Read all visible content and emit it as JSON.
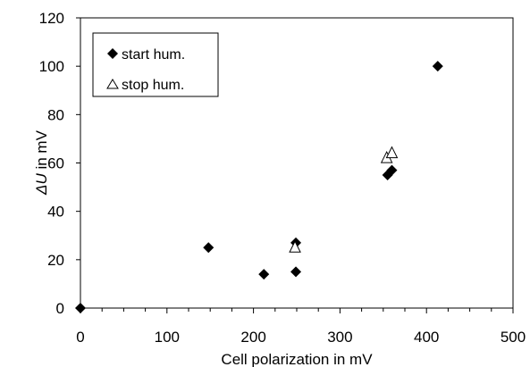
{
  "chart_data": {
    "type": "scatter",
    "xlabel": "Cell polarization in mV",
    "ylabel_italic": "ΔU",
    "ylabel_rest": " in mV",
    "xlim": [
      0,
      500
    ],
    "ylim": [
      0,
      120
    ],
    "x_ticks": [
      0,
      100,
      200,
      300,
      400,
      500
    ],
    "y_ticks": [
      0,
      20,
      40,
      60,
      80,
      100,
      120
    ],
    "x_tick_labels": [
      "0",
      "100",
      "200",
      "300",
      "400",
      "500"
    ],
    "y_tick_labels": [
      "0",
      "20",
      "40",
      "60",
      "80",
      "100",
      "120"
    ],
    "x_minor_step": 25,
    "grid": false,
    "legend_position": "top-left",
    "series": [
      {
        "name": "start hum.",
        "marker": "filled-diamond",
        "color": "#000000",
        "points": [
          {
            "x": 0,
            "y": 0
          },
          {
            "x": 148,
            "y": 25
          },
          {
            "x": 212,
            "y": 14
          },
          {
            "x": 249,
            "y": 27
          },
          {
            "x": 249,
            "y": 15
          },
          {
            "x": 355,
            "y": 55
          },
          {
            "x": 360,
            "y": 57
          },
          {
            "x": 413,
            "y": 100
          }
        ]
      },
      {
        "name": "stop hum.",
        "marker": "open-triangle",
        "color": "#000000",
        "points": [
          {
            "x": 248,
            "y": 25
          },
          {
            "x": 354,
            "y": 62
          },
          {
            "x": 360,
            "y": 64
          }
        ]
      }
    ]
  }
}
